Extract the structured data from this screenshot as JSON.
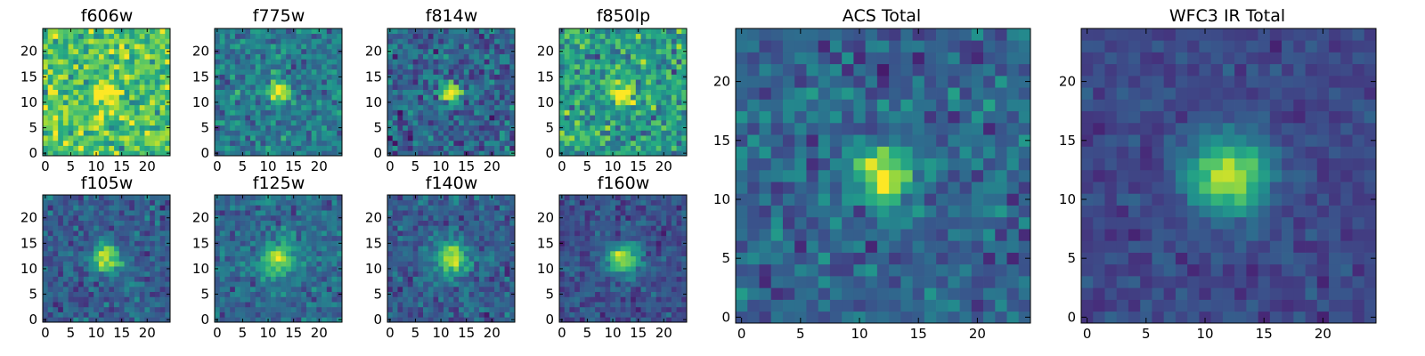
{
  "figure": {
    "colormap": "viridis",
    "background": "#ffffff"
  },
  "chart_data": [
    {
      "type": "heatmap",
      "title": "f606w",
      "xlabel": "",
      "ylabel": "",
      "xlim": [
        0,
        25
      ],
      "ylim": [
        0,
        25
      ],
      "xticks": [
        "0",
        "5",
        "10",
        "15",
        "20"
      ],
      "yticks": [
        "0",
        "5",
        "10",
        "15",
        "20"
      ],
      "center": [
        12,
        12
      ],
      "sigma": 1.5,
      "peak": 0.45,
      "bg_mean": 0.72,
      "noise": 0.2,
      "seed": 11
    },
    {
      "type": "heatmap",
      "title": "f775w",
      "xlabel": "",
      "ylabel": "",
      "xlim": [
        0,
        25
      ],
      "ylim": [
        0,
        25
      ],
      "xticks": [
        "0",
        "5",
        "10",
        "15",
        "20"
      ],
      "yticks": [
        "0",
        "5",
        "10",
        "15",
        "20"
      ],
      "center": [
        12,
        12
      ],
      "sigma": 1.4,
      "peak": 0.55,
      "bg_mean": 0.42,
      "noise": 0.15,
      "seed": 12
    },
    {
      "type": "heatmap",
      "title": "f814w",
      "xlabel": "",
      "ylabel": "",
      "xlim": [
        0,
        25
      ],
      "ylim": [
        0,
        25
      ],
      "xticks": [
        "0",
        "5",
        "10",
        "15",
        "20"
      ],
      "yticks": [
        "0",
        "5",
        "10",
        "15",
        "20"
      ],
      "center": [
        12,
        12
      ],
      "sigma": 1.4,
      "peak": 0.7,
      "bg_mean": 0.32,
      "noise": 0.16,
      "seed": 13
    },
    {
      "type": "heatmap",
      "title": "f850lp",
      "xlabel": "",
      "ylabel": "",
      "xlim": [
        0,
        25
      ],
      "ylim": [
        0,
        25
      ],
      "xticks": [
        "0",
        "5",
        "10",
        "15",
        "20"
      ],
      "yticks": [
        "0",
        "5",
        "10",
        "15",
        "20"
      ],
      "center": [
        12,
        12
      ],
      "sigma": 1.5,
      "peak": 0.5,
      "bg_mean": 0.55,
      "noise": 0.2,
      "seed": 14
    },
    {
      "type": "heatmap",
      "title": "f105w",
      "xlabel": "",
      "ylabel": "",
      "xlim": [
        0,
        25
      ],
      "ylim": [
        0,
        25
      ],
      "xticks": [
        "0",
        "5",
        "10",
        "15",
        "20"
      ],
      "yticks": [
        "0",
        "5",
        "10",
        "15",
        "20"
      ],
      "center": [
        12,
        12
      ],
      "sigma": 2.0,
      "peak": 0.65,
      "bg_mean": 0.3,
      "noise": 0.12,
      "seed": 15
    },
    {
      "type": "heatmap",
      "title": "f125w",
      "xlabel": "",
      "ylabel": "",
      "xlim": [
        0,
        25
      ],
      "ylim": [
        0,
        25
      ],
      "xticks": [
        "0",
        "5",
        "10",
        "15",
        "20"
      ],
      "yticks": [
        "0",
        "5",
        "10",
        "15",
        "20"
      ],
      "center": [
        12,
        12
      ],
      "sigma": 2.2,
      "peak": 0.6,
      "bg_mean": 0.35,
      "noise": 0.12,
      "seed": 16
    },
    {
      "type": "heatmap",
      "title": "f140w",
      "xlabel": "",
      "ylabel": "",
      "xlim": [
        0,
        25
      ],
      "ylim": [
        0,
        25
      ],
      "xticks": [
        "0",
        "5",
        "10",
        "15",
        "20"
      ],
      "yticks": [
        "0",
        "5",
        "10",
        "15",
        "20"
      ],
      "center": [
        12,
        12
      ],
      "sigma": 2.2,
      "peak": 0.65,
      "bg_mean": 0.3,
      "noise": 0.12,
      "seed": 17
    },
    {
      "type": "heatmap",
      "title": "f160w",
      "xlabel": "",
      "ylabel": "",
      "xlim": [
        0,
        25
      ],
      "ylim": [
        0,
        25
      ],
      "xticks": [
        "0",
        "5",
        "10",
        "15",
        "20"
      ],
      "yticks": [
        "0",
        "5",
        "10",
        "15",
        "20"
      ],
      "center": [
        12,
        12
      ],
      "sigma": 2.2,
      "peak": 0.65,
      "bg_mean": 0.25,
      "noise": 0.1,
      "seed": 18
    },
    {
      "type": "heatmap",
      "title": "ACS Total",
      "xlabel": "",
      "ylabel": "",
      "xlim": [
        0,
        25
      ],
      "ylim": [
        0,
        25
      ],
      "xticks": [
        "0",
        "5",
        "10",
        "15",
        "20"
      ],
      "yticks": [
        "0",
        "5",
        "10",
        "15",
        "20"
      ],
      "center": [
        12,
        12
      ],
      "sigma": 1.6,
      "peak": 0.7,
      "bg_mean": 0.33,
      "noise": 0.14,
      "seed": 19
    },
    {
      "type": "heatmap",
      "title": "WFC3 IR Total",
      "xlabel": "",
      "ylabel": "",
      "xlim": [
        0,
        25
      ],
      "ylim": [
        0,
        25
      ],
      "xticks": [
        "0",
        "5",
        "10",
        "15",
        "20"
      ],
      "yticks": [
        "0",
        "5",
        "10",
        "15",
        "20"
      ],
      "center": [
        12,
        12
      ],
      "sigma": 2.3,
      "peak": 0.7,
      "bg_mean": 0.22,
      "noise": 0.07,
      "seed": 20
    }
  ]
}
